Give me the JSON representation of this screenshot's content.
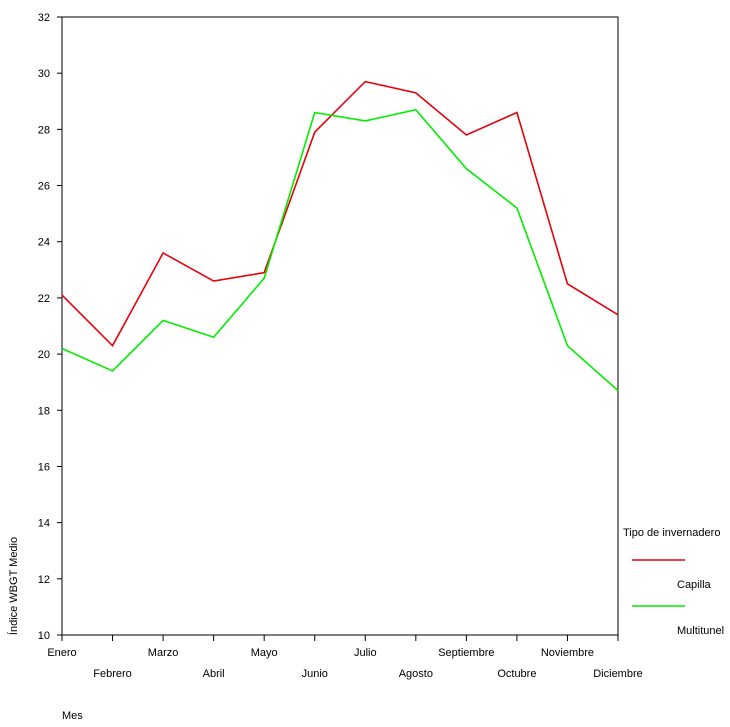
{
  "chart_data": {
    "type": "line",
    "xlabel": "Mes",
    "ylabel": "Índice WBGT Medio",
    "ylim": [
      10,
      32
    ],
    "yticks": [
      10,
      12,
      14,
      16,
      18,
      20,
      22,
      24,
      26,
      28,
      30,
      32
    ],
    "grid": false,
    "legend_placement": "right",
    "categories": [
      "Enero",
      "Febrero",
      "Marzo",
      "Abril",
      "Mayo",
      "Junio",
      "Julio",
      "Agosto",
      "Septiembre",
      "Octubre",
      "Noviembre",
      "Diciembre"
    ],
    "legend": {
      "title": "Tipo de invernadero"
    },
    "series": [
      {
        "name": "Capilla",
        "color": "#e8000b",
        "values": [
          22.1,
          20.3,
          23.6,
          22.6,
          22.9,
          27.9,
          29.7,
          29.3,
          27.8,
          28.6,
          22.5,
          21.4
        ]
      },
      {
        "name": "Multitunel",
        "color": "#00ee00",
        "values": [
          20.2,
          19.4,
          21.2,
          20.6,
          22.7,
          28.6,
          28.3,
          28.7,
          26.6,
          25.2,
          20.3,
          18.7
        ]
      }
    ]
  }
}
